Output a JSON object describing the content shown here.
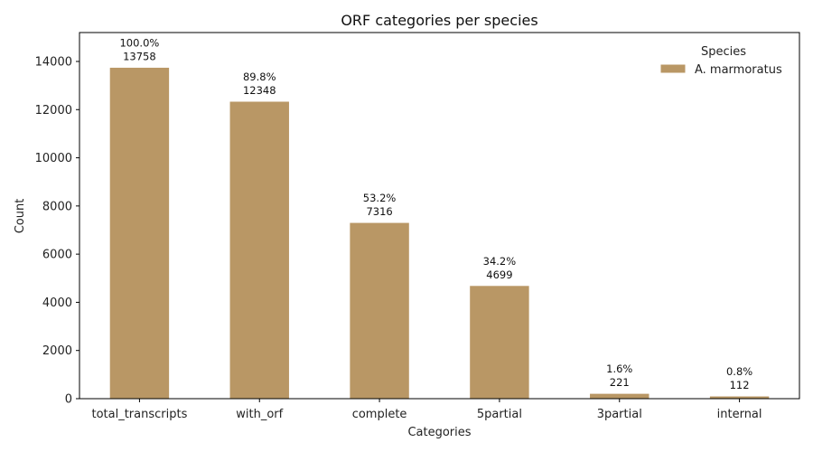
{
  "chart_data": {
    "type": "bar",
    "title": "ORF categories per species",
    "xlabel": "Categories",
    "ylabel": "Count",
    "categories": [
      "total_transcripts",
      "with_orf",
      "complete",
      "5partial",
      "3partial",
      "internal"
    ],
    "series": [
      {
        "name": "A. marmoratus",
        "values": [
          13758,
          12348,
          7316,
          4699,
          221,
          112
        ],
        "percent_labels": [
          "100.0%",
          "89.8%",
          "53.2%",
          "34.2%",
          "1.6%",
          "0.8%"
        ],
        "value_labels": [
          "13758",
          "12348",
          "7316",
          "4699",
          "221",
          "112"
        ],
        "color": "#b99765"
      }
    ],
    "ylim": [
      0,
      15200
    ],
    "yticks": [
      0,
      2000,
      4000,
      6000,
      8000,
      10000,
      12000,
      14000
    ],
    "ytick_labels": [
      "0",
      "2000",
      "4000",
      "6000",
      "8000",
      "10000",
      "12000",
      "14000"
    ],
    "grid": false,
    "legend": {
      "title": "Species",
      "placement": "top-right"
    }
  }
}
